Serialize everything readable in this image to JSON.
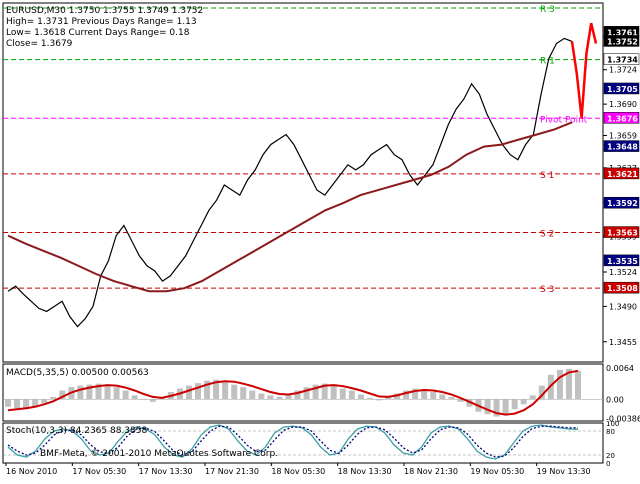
{
  "chart_data": {
    "type": "line",
    "title": "EURUSD,M30  1.3750 1.3755 1.3749 1.3752",
    "info_lines": [
      "High= 1.3731    Previous Days Range= 1.13",
      "Low= 1.3618    Current Days Range= 0.18",
      "Close= 1.3679"
    ],
    "x_ticks": [
      "16 Nov 2010",
      "17 Nov 05:30",
      "17 Nov 13:30",
      "17 Nov 21:30",
      "18 Nov 05:30",
      "18 Nov 13:30",
      "18 Nov 21:30",
      "19 Nov 05:30",
      "19 Nov 13:30"
    ],
    "main": {
      "ylim": [
        1.3435,
        1.379
      ],
      "y_ticks": [
        1.3455,
        1.349,
        1.3524,
        1.3559,
        1.3593,
        1.3627,
        1.3659,
        1.369,
        1.3724
      ],
      "price_series": [
        1.3505,
        1.351,
        1.3502,
        1.3495,
        1.3488,
        1.3485,
        1.349,
        1.3495,
        1.348,
        1.347,
        1.3478,
        1.349,
        1.352,
        1.3535,
        1.356,
        1.357,
        1.3555,
        1.354,
        1.353,
        1.3525,
        1.3515,
        1.352,
        1.353,
        1.354,
        1.3555,
        1.357,
        1.3585,
        1.3595,
        1.361,
        1.3605,
        1.36,
        1.3615,
        1.3625,
        1.364,
        1.365,
        1.3655,
        1.366,
        1.365,
        1.3635,
        1.362,
        1.3605,
        1.36,
        1.361,
        1.362,
        1.363,
        1.3625,
        1.363,
        1.364,
        1.3645,
        1.365,
        1.364,
        1.3635,
        1.362,
        1.361,
        1.362,
        1.363,
        1.365,
        1.367,
        1.3685,
        1.3695,
        1.371,
        1.37,
        1.368,
        1.3665,
        1.365,
        1.364,
        1.3635,
        1.365,
        1.366,
        1.37,
        1.3735,
        1.375,
        1.3755,
        1.3752
      ],
      "forecast_series": [
        1.3752,
        1.372,
        1.3676,
        1.374,
        1.377,
        1.375
      ],
      "ma_series": [
        1.356,
        1.3552,
        1.3545,
        1.3538,
        1.353,
        1.3522,
        1.3515,
        1.351,
        1.3505,
        1.3505,
        1.3508,
        1.3515,
        1.3525,
        1.3535,
        1.3545,
        1.3555,
        1.3565,
        1.3575,
        1.3585,
        1.3592,
        1.36,
        1.3605,
        1.361,
        1.3615,
        1.362,
        1.3628,
        1.364,
        1.3648,
        1.365,
        1.3655,
        1.366,
        1.3665,
        1.3672
      ],
      "levels": [
        {
          "label": "R 3",
          "value": 1.3785,
          "color": "#00aa00"
        },
        {
          "label": "R 1",
          "value": 1.3734,
          "color": "#00aa00"
        },
        {
          "label": "Pivot Point",
          "value": 1.3676,
          "color": "#ff00ff"
        },
        {
          "label": "S 1",
          "value": 1.3621,
          "color": "#cc0000"
        },
        {
          "label": "S 2",
          "value": 1.3563,
          "color": "#cc0000"
        },
        {
          "label": "S 3",
          "value": 1.3508,
          "color": "#cc0000"
        }
      ],
      "price_tags": [
        {
          "text": "1.3761",
          "value": 1.3761,
          "bg": "#000000",
          "fg": "#ffffff"
        },
        {
          "text": "1.3752",
          "value": 1.3752,
          "bg": "#000000",
          "fg": "#ffffff"
        },
        {
          "text": "1.3734",
          "value": 1.3734,
          "bg": "#ffffff",
          "fg": "#000000"
        },
        {
          "text": "1.3705",
          "value": 1.3705,
          "bg": "#000080",
          "fg": "#ffffff"
        },
        {
          "text": "1.3676",
          "value": 1.3676,
          "bg": "#ff00ff",
          "fg": "#ffffff"
        },
        {
          "text": "1.3648",
          "value": 1.3648,
          "bg": "#000080",
          "fg": "#ffffff"
        },
        {
          "text": "1.3621",
          "value": 1.3621,
          "bg": "#cc0000",
          "fg": "#ffffff"
        },
        {
          "text": "1.3592",
          "value": 1.3592,
          "bg": "#000080",
          "fg": "#ffffff"
        },
        {
          "text": "1.3563",
          "value": 1.3563,
          "bg": "#cc0000",
          "fg": "#ffffff"
        },
        {
          "text": "1.3535",
          "value": 1.3535,
          "bg": "#000080",
          "fg": "#ffffff"
        },
        {
          "text": "1.3508",
          "value": 1.3508,
          "bg": "#cc0000",
          "fg": "#ffffff"
        }
      ]
    },
    "macd": {
      "label": "MACD(5,35,5) 0.00500 0.00563",
      "ylim": [
        -0.0044,
        0.0072
      ],
      "y_ticks": [
        "0.0064",
        "0.00",
        "-0.00386"
      ],
      "y_tick_values": [
        0.0064,
        0.0,
        -0.00386
      ],
      "hist": [
        -0.0015,
        -0.0018,
        -0.002,
        -0.0015,
        -0.0008,
        0.0005,
        0.0018,
        0.0025,
        0.0028,
        0.003,
        0.0032,
        0.003,
        0.0025,
        0.0018,
        0.0008,
        0.0,
        -0.0005,
        0.0005,
        0.0015,
        0.0022,
        0.0028,
        0.0033,
        0.0038,
        0.004,
        0.0035,
        0.003,
        0.0025,
        0.0018,
        0.0012,
        0.0008,
        0.0005,
        0.001,
        0.0018,
        0.0025,
        0.003,
        0.0032,
        0.0028,
        0.0022,
        0.0018,
        0.001,
        0.0003,
        -0.0002,
        0.0005,
        0.0012,
        0.0018,
        0.0022,
        0.002,
        0.0015,
        0.001,
        0.0005,
        -0.0005,
        -0.0015,
        -0.0025,
        -0.003,
        -0.0035,
        -0.003,
        -0.002,
        -0.001,
        0.0008,
        0.0028,
        0.005,
        0.006,
        0.0062,
        0.0058
      ],
      "signal": [
        -0.0022,
        -0.002,
        -0.0018,
        -0.0015,
        -0.001,
        -0.0004,
        0.0005,
        0.0014,
        0.002,
        0.0024,
        0.0027,
        0.0029,
        0.0028,
        0.0024,
        0.0018,
        0.0011,
        0.0005,
        0.0003,
        0.0007,
        0.0012,
        0.0018,
        0.0024,
        0.003,
        0.0035,
        0.0037,
        0.0036,
        0.0032,
        0.0027,
        0.0021,
        0.0015,
        0.0011,
        0.001,
        0.0013,
        0.0018,
        0.0023,
        0.0028,
        0.0029,
        0.0027,
        0.0023,
        0.0018,
        0.0012,
        0.0006,
        0.0005,
        0.0008,
        0.0013,
        0.0017,
        0.0019,
        0.0018,
        0.0015,
        0.001,
        0.0003,
        -0.0005,
        -0.0013,
        -0.0021,
        -0.0028,
        -0.0031,
        -0.0029,
        -0.0022,
        -0.001,
        0.0008,
        0.0028,
        0.0045,
        0.0055,
        0.0058
      ]
    },
    "stoch": {
      "label": "Stoch(10,3,3) 84.2365 88.3858",
      "ylim": [
        0,
        100
      ],
      "y_tick_values": [
        100,
        80,
        20,
        0
      ],
      "main": [
        40,
        20,
        15,
        30,
        60,
        80,
        85,
        80,
        60,
        30,
        20,
        25,
        55,
        80,
        90,
        85,
        70,
        40,
        20,
        15,
        35,
        70,
        90,
        95,
        85,
        55,
        30,
        20,
        40,
        75,
        90,
        92,
        88,
        70,
        40,
        20,
        25,
        60,
        85,
        92,
        90,
        75,
        45,
        25,
        20,
        40,
        75,
        90,
        92,
        85,
        60,
        30,
        15,
        10,
        20,
        50,
        80,
        92,
        95,
        90,
        88,
        85,
        84
      ],
      "signal": [
        45,
        30,
        20,
        25,
        45,
        70,
        82,
        82,
        70,
        45,
        28,
        24,
        40,
        68,
        85,
        87,
        78,
        55,
        30,
        20,
        28,
        55,
        80,
        92,
        90,
        70,
        45,
        28,
        32,
        58,
        82,
        90,
        90,
        80,
        55,
        32,
        24,
        45,
        72,
        88,
        90,
        83,
        62,
        38,
        25,
        33,
        60,
        83,
        90,
        88,
        72,
        45,
        25,
        15,
        17,
        38,
        66,
        86,
        92,
        92,
        90,
        88,
        88
      ]
    }
  }
}
